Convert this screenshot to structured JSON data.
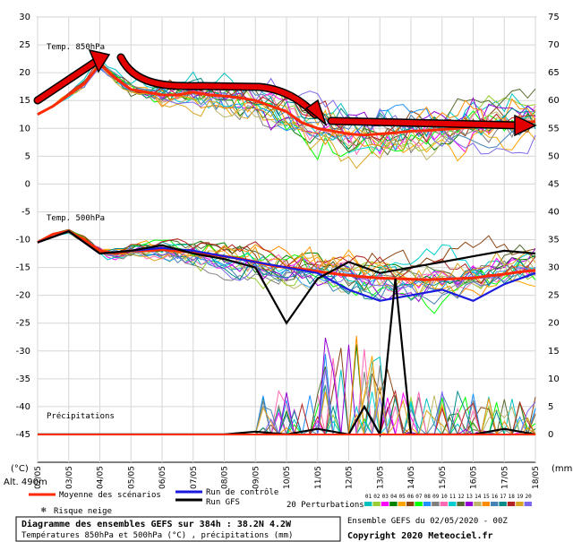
{
  "chart_data": {
    "type": "line",
    "title": "Diagramme des ensembles GEFS sur 384h : 38.2N 4.2W",
    "subtitle": "Températures 850hPa et 500hPa (°C) , précipitations (mm)",
    "run_info": "Ensemble GEFS du 02/05/2020 - 00Z",
    "copyright": "Copyright 2020 Meteociel.fr",
    "altitude": "Alt. 490m",
    "left_unit": "(°C)",
    "right_unit": "(mm)",
    "left_ticks": [
      "30",
      "25",
      "20",
      "15",
      "10",
      "5",
      "0",
      "-5",
      "-10",
      "-15",
      "-20",
      "-25",
      "-30",
      "-35",
      "-40",
      "-45"
    ],
    "right_ticks": [
      "75",
      "70",
      "65",
      "60",
      "55",
      "50",
      "45",
      "40",
      "35",
      "30",
      "25",
      "20",
      "15",
      "10",
      "5",
      "0"
    ],
    "ylim_left": [
      -50,
      30
    ],
    "x_ticks": [
      "02/05",
      "03/05",
      "04/05",
      "05/05",
      "06/05",
      "07/05",
      "08/05",
      "09/05",
      "10/05",
      "11/05",
      "12/05",
      "13/05",
      "14/05",
      "15/05",
      "16/05",
      "17/05",
      "18/05"
    ],
    "panel_labels": {
      "t850": "Temp. 850hPa",
      "t500": "Temp. 500hPa",
      "precip": "Précipitations"
    },
    "legend": {
      "mean": "Moyenne des scénarios",
      "control": "Run de contrôle",
      "gfs": "Run GFS",
      "snow": "Risque neige",
      "perturbations": "20 Perturbations",
      "perturbation_ids": [
        "01",
        "02",
        "03",
        "04",
        "05",
        "06",
        "07",
        "08",
        "09",
        "10",
        "11",
        "12",
        "13",
        "14",
        "15",
        "16",
        "17",
        "18",
        "19",
        "20"
      ]
    },
    "colors": {
      "mean": "#ff2a00",
      "control": "#1a1adf",
      "gfs": "#000000",
      "arrow": "#e40000",
      "snow": "#4a9be8"
    },
    "perturbation_colors": [
      "#00c0c0",
      "#9acd32",
      "#ff00ff",
      "#008000",
      "#ffa500",
      "#8b4513",
      "#00ff00",
      "#1e90ff",
      "#808080",
      "#ff69b4",
      "#00ced1",
      "#556b2f",
      "#9400d3",
      "#bdb76b",
      "#ff8c00",
      "#4682b4",
      "#008b8b",
      "#b22222",
      "#daa520",
      "#7b68ee"
    ],
    "series": [
      {
        "name": "Moyenne des scénarios",
        "panel": "t850",
        "x": [
          0,
          0.5,
          1,
          1.5,
          2,
          2.5,
          3,
          3.5,
          4,
          4.5,
          5,
          5.5,
          6,
          6.5,
          7,
          7.5,
          8,
          8.5,
          9,
          9.5,
          10,
          10.5,
          11,
          11.5,
          12,
          12.5,
          13,
          13.5,
          14,
          14.5,
          15,
          15.5,
          16
        ],
        "y": [
          12.5,
          14,
          16,
          18,
          21.5,
          19,
          17,
          16.5,
          16,
          16,
          16.5,
          16,
          15.8,
          15.5,
          15,
          14,
          13,
          11,
          10,
          9.5,
          9,
          8.8,
          9,
          9.2,
          9.5,
          9.6,
          9.8,
          10,
          10.2,
          10.5,
          10.8,
          11,
          11.2
        ]
      },
      {
        "name": "Moyenne des scénarios",
        "panel": "t500",
        "x": [
          0,
          0.5,
          1,
          1.5,
          2,
          2.5,
          3,
          3.5,
          4,
          4.5,
          5,
          5.5,
          6,
          6.5,
          7,
          7.5,
          8,
          8.5,
          9,
          9.5,
          10,
          10.5,
          11,
          11.5,
          12,
          12.5,
          13,
          13.5,
          14,
          14.5,
          15,
          15.5,
          16
        ],
        "y": [
          -10.5,
          -9,
          -8.5,
          -10,
          -12,
          -12.5,
          -12,
          -12,
          -11.8,
          -12,
          -12.3,
          -12.6,
          -13,
          -13.4,
          -14,
          -14.6,
          -15,
          -15.3,
          -15.7,
          -16.1,
          -16.4,
          -16.7,
          -16.9,
          -17,
          -17.1,
          -17.2,
          -17.1,
          -17,
          -16.9,
          -16.5,
          -16.2,
          -15.8,
          -15.5
        ]
      },
      {
        "name": "Run de contrôle",
        "panel": "t500",
        "x": [
          0,
          1,
          2,
          3,
          4,
          5,
          6,
          7,
          8,
          9,
          10,
          11,
          12,
          13,
          14,
          15,
          16
        ],
        "y": [
          -10.5,
          -8.5,
          -12.5,
          -12,
          -11.5,
          -12,
          -13,
          -14,
          -15,
          -16,
          -19,
          -21,
          -20,
          -19,
          -21,
          -18,
          -16
        ]
      },
      {
        "name": "Run GFS",
        "panel": "t500",
        "x": [
          0,
          1,
          2,
          3,
          4,
          5,
          6,
          7,
          8,
          9,
          10,
          11,
          12,
          13,
          14,
          15,
          16
        ],
        "y": [
          -10.5,
          -8.5,
          -12.5,
          -12,
          -11,
          -12.5,
          -13.5,
          -15,
          -25,
          -17,
          -14,
          -16,
          -15,
          -14,
          -13,
          -12,
          -12.5
        ]
      },
      {
        "name": "Run GFS",
        "panel": "precip",
        "x": [
          0,
          2,
          4,
          6,
          7,
          8,
          9,
          10,
          10.5,
          11,
          11.5,
          12,
          13,
          14,
          15,
          16
        ],
        "y": [
          0,
          0,
          0,
          0,
          0.5,
          0,
          1,
          0,
          5,
          0,
          28,
          0,
          0,
          0,
          1,
          0
        ]
      }
    ]
  }
}
